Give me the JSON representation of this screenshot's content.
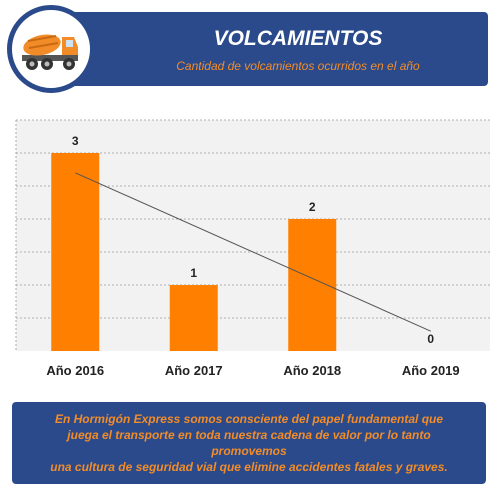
{
  "header": {
    "title": "VOLCAMIENTOS",
    "subtitle": "Cantidad de volcamientos ocurridos en el año"
  },
  "icon": "concrete-mixer-truck-icon",
  "chart_data": {
    "type": "bar",
    "categories": [
      "Año 2016",
      "Año 2017",
      "Año 2018",
      "Año 2019"
    ],
    "values": [
      3,
      1,
      2,
      0
    ],
    "data_labels": [
      "3",
      "1",
      "2",
      "0"
    ],
    "ylim": [
      0,
      3.5
    ],
    "grid": true,
    "trendline": true,
    "bar_color": "#ff7f00"
  },
  "footer": {
    "line1": "En Hormigón Express somos consciente del papel  fundamental que",
    "line2": "juega el transporte en toda nuestra cadena de valor por lo tanto promovemos",
    "line3": "una cultura  de seguridad vial que elimine accidentes fatales y graves."
  },
  "colors": {
    "brand_blue": "#2b4a8b",
    "accent_orange": "#f28c28",
    "bar_orange": "#ff7f00"
  }
}
